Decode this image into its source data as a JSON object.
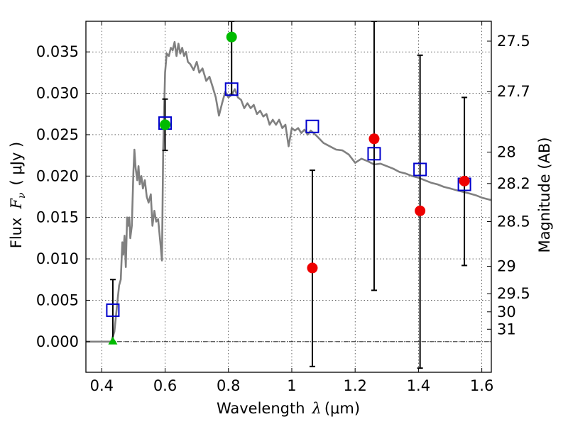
{
  "chart_data": {
    "type": "scatter",
    "xlabel_main": "Wavelength",
    "xlabel_math": "λ",
    "xlabel_unit": "(μm)",
    "ylabel_left_main": "Flux",
    "ylabel_left_math": "F",
    "ylabel_left_sub": "ν",
    "ylabel_left_unit": "( μJy )",
    "ylabel_right": "Magnitude (AB)",
    "xlim": [
      0.35,
      1.63
    ],
    "ylim": [
      -0.0037,
      0.0387
    ],
    "grid": true,
    "x_ticks": [
      {
        "value": 0.4,
        "label": "0.4"
      },
      {
        "value": 0.6,
        "label": "0.6"
      },
      {
        "value": 0.8,
        "label": "0.8"
      },
      {
        "value": 1.0,
        "label": "1"
      },
      {
        "value": 1.2,
        "label": "1.2"
      },
      {
        "value": 1.4,
        "label": "1.4"
      },
      {
        "value": 1.6,
        "label": "1.6"
      }
    ],
    "y_ticks": [
      {
        "value": 0.0,
        "label": "0.000"
      },
      {
        "value": 0.005,
        "label": "0.005"
      },
      {
        "value": 0.01,
        "label": "0.010"
      },
      {
        "value": 0.015,
        "label": "0.015"
      },
      {
        "value": 0.02,
        "label": "0.020"
      },
      {
        "value": 0.025,
        "label": "0.025"
      },
      {
        "value": 0.03,
        "label": "0.030"
      },
      {
        "value": 0.035,
        "label": "0.035"
      }
    ],
    "right_ticks": [
      {
        "mag": "27.5",
        "flux": 0.0363
      },
      {
        "mag": "27.7",
        "flux": 0.0302
      },
      {
        "mag": "28",
        "flux": 0.0229
      },
      {
        "mag": "28.2",
        "flux": 0.0191
      },
      {
        "mag": "28.5",
        "flux": 0.0145
      },
      {
        "mag": "29",
        "flux": 0.0091
      },
      {
        "mag": "29.5",
        "flux": 0.0058
      },
      {
        "mag": "30",
        "flux": 0.0036
      },
      {
        "mag": "31",
        "flux": 0.0015
      }
    ],
    "series": [
      {
        "kind": "line",
        "color": "#808080",
        "points": [
          [
            0.35,
            0.0
          ],
          [
            0.43,
            0.0
          ],
          [
            0.44,
            0.0012
          ],
          [
            0.45,
            0.005
          ],
          [
            0.455,
            0.0068
          ],
          [
            0.46,
            0.0075
          ],
          [
            0.465,
            0.012
          ],
          [
            0.468,
            0.0105
          ],
          [
            0.472,
            0.0128
          ],
          [
            0.476,
            0.009
          ],
          [
            0.48,
            0.015
          ],
          [
            0.484,
            0.014
          ],
          [
            0.487,
            0.015
          ],
          [
            0.49,
            0.0125
          ],
          [
            0.495,
            0.014
          ],
          [
            0.5,
            0.0205
          ],
          [
            0.503,
            0.0232
          ],
          [
            0.507,
            0.021
          ],
          [
            0.512,
            0.0195
          ],
          [
            0.516,
            0.0212
          ],
          [
            0.52,
            0.019
          ],
          [
            0.525,
            0.02
          ],
          [
            0.53,
            0.0185
          ],
          [
            0.536,
            0.0195
          ],
          [
            0.542,
            0.0175
          ],
          [
            0.548,
            0.0168
          ],
          [
            0.555,
            0.0178
          ],
          [
            0.56,
            0.014
          ],
          [
            0.566,
            0.0158
          ],
          [
            0.572,
            0.0145
          ],
          [
            0.578,
            0.0148
          ],
          [
            0.585,
            0.012
          ],
          [
            0.59,
            0.0098
          ],
          [
            0.594,
            0.023
          ],
          [
            0.6,
            0.0325
          ],
          [
            0.605,
            0.0348
          ],
          [
            0.612,
            0.0345
          ],
          [
            0.618,
            0.0355
          ],
          [
            0.624,
            0.0352
          ],
          [
            0.63,
            0.0362
          ],
          [
            0.636,
            0.0345
          ],
          [
            0.642,
            0.036
          ],
          [
            0.648,
            0.0348
          ],
          [
            0.654,
            0.0355
          ],
          [
            0.66,
            0.0345
          ],
          [
            0.666,
            0.035
          ],
          [
            0.672,
            0.0338
          ],
          [
            0.68,
            0.0335
          ],
          [
            0.69,
            0.0328
          ],
          [
            0.7,
            0.0338
          ],
          [
            0.708,
            0.0325
          ],
          [
            0.718,
            0.033
          ],
          [
            0.73,
            0.0315
          ],
          [
            0.74,
            0.032
          ],
          [
            0.75,
            0.0308
          ],
          [
            0.76,
            0.0295
          ],
          [
            0.77,
            0.0273
          ],
          [
            0.78,
            0.0288
          ],
          [
            0.79,
            0.0302
          ],
          [
            0.8,
            0.0295
          ],
          [
            0.81,
            0.0298
          ],
          [
            0.82,
            0.0305
          ],
          [
            0.83,
            0.0295
          ],
          [
            0.84,
            0.0292
          ],
          [
            0.85,
            0.0282
          ],
          [
            0.86,
            0.0288
          ],
          [
            0.87,
            0.0282
          ],
          [
            0.88,
            0.0286
          ],
          [
            0.89,
            0.0275
          ],
          [
            0.9,
            0.0279
          ],
          [
            0.91,
            0.0272
          ],
          [
            0.92,
            0.0275
          ],
          [
            0.93,
            0.0262
          ],
          [
            0.94,
            0.0268
          ],
          [
            0.95,
            0.0262
          ],
          [
            0.96,
            0.0268
          ],
          [
            0.97,
            0.0258
          ],
          [
            0.98,
            0.0262
          ],
          [
            0.99,
            0.0236
          ],
          [
            1.0,
            0.0258
          ],
          [
            1.01,
            0.0255
          ],
          [
            1.02,
            0.0258
          ],
          [
            1.03,
            0.0252
          ],
          [
            1.04,
            0.0256
          ],
          [
            1.05,
            0.025
          ],
          [
            1.06,
            0.0255
          ],
          [
            1.08,
            0.0248
          ],
          [
            1.1,
            0.024
          ],
          [
            1.12,
            0.0236
          ],
          [
            1.14,
            0.0232
          ],
          [
            1.16,
            0.0231
          ],
          [
            1.18,
            0.0226
          ],
          [
            1.2,
            0.0216
          ],
          [
            1.22,
            0.0221
          ],
          [
            1.24,
            0.0218
          ],
          [
            1.26,
            0.0214
          ],
          [
            1.28,
            0.0215
          ],
          [
            1.3,
            0.0212
          ],
          [
            1.32,
            0.0209
          ],
          [
            1.34,
            0.0205
          ],
          [
            1.36,
            0.0203
          ],
          [
            1.38,
            0.02
          ],
          [
            1.4,
            0.0198
          ],
          [
            1.42,
            0.0195
          ],
          [
            1.44,
            0.0192
          ],
          [
            1.46,
            0.019
          ],
          [
            1.48,
            0.0187
          ],
          [
            1.5,
            0.0185
          ],
          [
            1.52,
            0.0183
          ],
          [
            1.54,
            0.0181
          ],
          [
            1.56,
            0.0179
          ],
          [
            1.58,
            0.0177
          ],
          [
            1.6,
            0.0174
          ],
          [
            1.63,
            0.0171
          ]
        ]
      },
      {
        "kind": "open-square",
        "color": "#0000cc",
        "points": [
          [
            0.435,
            0.0038
          ],
          [
            0.6,
            0.0264
          ],
          [
            0.81,
            0.0305
          ],
          [
            1.065,
            0.026
          ],
          [
            1.26,
            0.0227
          ],
          [
            1.405,
            0.0208
          ],
          [
            1.545,
            0.019
          ]
        ]
      },
      {
        "kind": "filled-circle",
        "color": "#00bb00",
        "points": [
          [
            0.6,
            0.0262
          ],
          [
            0.81,
            0.0368
          ]
        ]
      },
      {
        "kind": "filled-circle",
        "color": "#ee0000",
        "points": [
          [
            1.065,
            0.0089
          ],
          [
            1.26,
            0.0245
          ],
          [
            1.405,
            0.0158
          ],
          [
            1.545,
            0.0194
          ]
        ]
      },
      {
        "kind": "triangle",
        "color": "#00bb00",
        "points": [
          [
            0.435,
            0.0
          ]
        ]
      }
    ],
    "error_bars": [
      {
        "x": 0.435,
        "low": 0.0,
        "high": 0.0075
      },
      {
        "x": 0.6,
        "low": 0.0231,
        "high": 0.0293
      },
      {
        "x": 0.81,
        "low": 0.0298,
        "high": 0.0387
      },
      {
        "x": 1.065,
        "low": -0.003,
        "high": 0.0207
      },
      {
        "x": 1.26,
        "low": 0.0062,
        "high": 0.0387
      },
      {
        "x": 1.405,
        "low": -0.0032,
        "high": 0.0346
      },
      {
        "x": 1.545,
        "low": 0.0092,
        "high": 0.0295
      }
    ]
  }
}
